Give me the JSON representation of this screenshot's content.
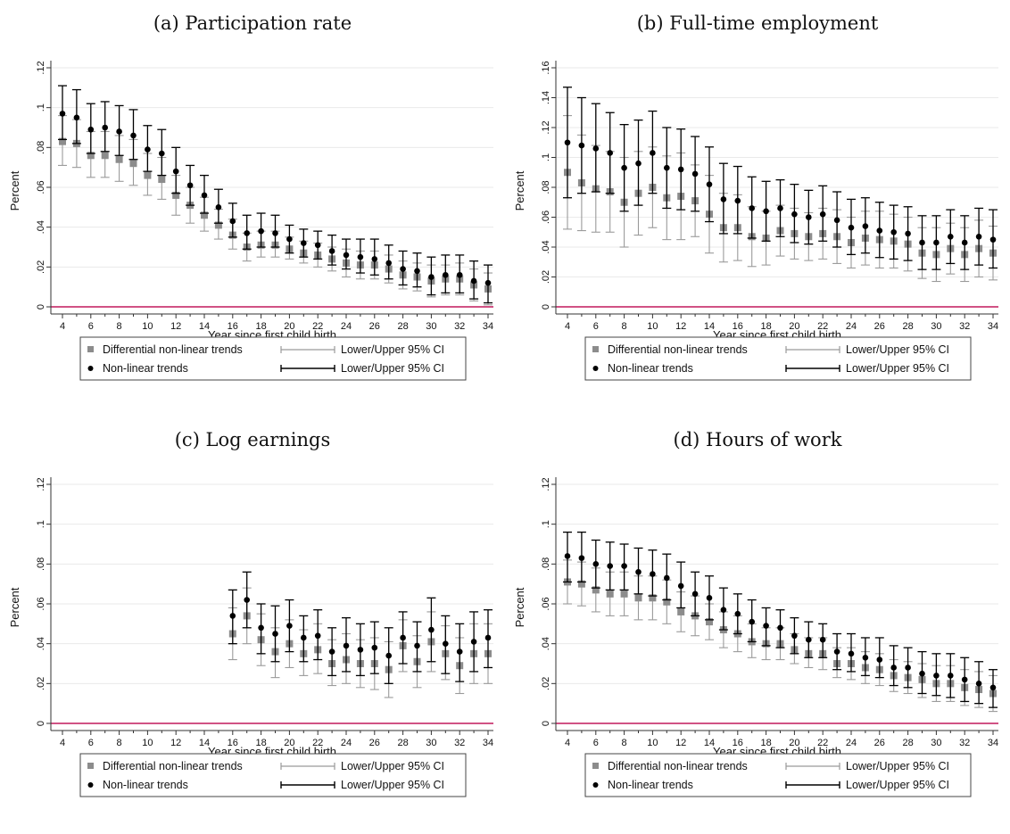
{
  "chart_data": [
    {
      "type": "scatter",
      "title": "(a) Participation rate",
      "xlabel": "Year since first child birth",
      "ylabel": "Percent",
      "xlim": [
        4,
        34
      ],
      "ylim": [
        0,
        0.12
      ],
      "xticks": [
        4,
        6,
        8,
        10,
        12,
        14,
        16,
        18,
        20,
        22,
        24,
        26,
        28,
        30,
        32,
        34
      ],
      "yticks": [
        0,
        0.02,
        0.04,
        0.06,
        0.08,
        0.1,
        0.12
      ],
      "ytick_labels": [
        "0",
        ".02",
        ".04",
        ".06",
        ".08",
        ".1",
        ".12"
      ],
      "grid": true,
      "legend_position": "bottom",
      "x": [
        4,
        5,
        6,
        7,
        8,
        9,
        10,
        11,
        12,
        13,
        14,
        15,
        16,
        17,
        18,
        19,
        20,
        21,
        22,
        23,
        24,
        25,
        26,
        27,
        28,
        29,
        30,
        31,
        32,
        33,
        34
      ],
      "series": [
        {
          "name": "Differential non-linear trends",
          "values": [
            0.083,
            0.082,
            0.076,
            0.076,
            0.074,
            0.072,
            0.066,
            0.064,
            0.056,
            0.051,
            0.046,
            0.041,
            0.036,
            0.03,
            0.031,
            0.031,
            0.029,
            0.027,
            0.026,
            0.024,
            0.022,
            0.021,
            0.021,
            0.019,
            0.016,
            0.015,
            0.013,
            0.014,
            0.014,
            0.011,
            0.009
          ],
          "lower": [
            0.071,
            0.07,
            0.065,
            0.065,
            0.063,
            0.061,
            0.056,
            0.054,
            0.046,
            0.042,
            0.038,
            0.034,
            0.029,
            0.023,
            0.025,
            0.025,
            0.024,
            0.022,
            0.02,
            0.018,
            0.015,
            0.014,
            0.014,
            0.012,
            0.009,
            0.008,
            0.005,
            0.006,
            0.006,
            0.003,
            0.001
          ],
          "upper": [
            0.096,
            0.094,
            0.088,
            0.088,
            0.086,
            0.084,
            0.077,
            0.075,
            0.066,
            0.06,
            0.055,
            0.049,
            0.044,
            0.037,
            0.038,
            0.038,
            0.035,
            0.033,
            0.032,
            0.03,
            0.029,
            0.028,
            0.028,
            0.026,
            0.023,
            0.022,
            0.021,
            0.021,
            0.022,
            0.019,
            0.017
          ]
        },
        {
          "name": "Non-linear trends",
          "values": [
            0.097,
            0.095,
            0.089,
            0.09,
            0.088,
            0.086,
            0.079,
            0.077,
            0.068,
            0.061,
            0.056,
            0.05,
            0.043,
            0.037,
            0.038,
            0.037,
            0.034,
            0.032,
            0.031,
            0.028,
            0.026,
            0.025,
            0.024,
            0.022,
            0.019,
            0.018,
            0.015,
            0.016,
            0.016,
            0.013,
            0.012
          ],
          "lower": [
            0.084,
            0.082,
            0.077,
            0.078,
            0.076,
            0.074,
            0.068,
            0.066,
            0.057,
            0.051,
            0.047,
            0.042,
            0.035,
            0.029,
            0.03,
            0.03,
            0.027,
            0.025,
            0.024,
            0.021,
            0.019,
            0.017,
            0.016,
            0.014,
            0.011,
            0.01,
            0.006,
            0.007,
            0.007,
            0.004,
            0.002
          ],
          "upper": [
            0.111,
            0.109,
            0.102,
            0.103,
            0.101,
            0.099,
            0.091,
            0.089,
            0.08,
            0.071,
            0.066,
            0.059,
            0.052,
            0.046,
            0.047,
            0.046,
            0.041,
            0.039,
            0.038,
            0.036,
            0.034,
            0.034,
            0.034,
            0.031,
            0.028,
            0.027,
            0.025,
            0.026,
            0.026,
            0.023,
            0.021
          ]
        }
      ]
    },
    {
      "type": "scatter",
      "title": "(b) Full-time employment",
      "xlabel": "Year since first child birth",
      "ylabel": "Percent",
      "xlim": [
        4,
        34
      ],
      "ylim": [
        0,
        0.16
      ],
      "xticks": [
        4,
        6,
        8,
        10,
        12,
        14,
        16,
        18,
        20,
        22,
        24,
        26,
        28,
        30,
        32,
        34
      ],
      "yticks": [
        0,
        0.02,
        0.04,
        0.06,
        0.08,
        0.1,
        0.12,
        0.14,
        0.16
      ],
      "ytick_labels": [
        "0",
        ".02",
        ".04",
        ".06",
        ".08",
        ".1",
        ".12",
        ".14",
        ".16"
      ],
      "grid": true,
      "legend_position": "bottom",
      "x": [
        4,
        5,
        6,
        7,
        8,
        9,
        10,
        11,
        12,
        13,
        14,
        15,
        16,
        17,
        18,
        19,
        20,
        21,
        22,
        23,
        24,
        25,
        26,
        27,
        28,
        29,
        30,
        31,
        32,
        33,
        34
      ],
      "series": [
        {
          "name": "Differential non-linear trends",
          "values": [
            0.09,
            0.083,
            0.079,
            0.077,
            0.07,
            0.076,
            0.08,
            0.073,
            0.074,
            0.071,
            0.062,
            0.053,
            0.053,
            0.047,
            0.046,
            0.051,
            0.049,
            0.047,
            0.049,
            0.047,
            0.043,
            0.046,
            0.045,
            0.044,
            0.042,
            0.036,
            0.035,
            0.039,
            0.035,
            0.039,
            0.036
          ],
          "lower": [
            0.052,
            0.051,
            0.05,
            0.05,
            0.04,
            0.048,
            0.053,
            0.045,
            0.045,
            0.047,
            0.036,
            0.03,
            0.031,
            0.027,
            0.028,
            0.034,
            0.032,
            0.031,
            0.032,
            0.029,
            0.026,
            0.028,
            0.026,
            0.026,
            0.024,
            0.019,
            0.017,
            0.022,
            0.017,
            0.02,
            0.018
          ],
          "upper": [
            0.128,
            0.115,
            0.108,
            0.104,
            0.1,
            0.104,
            0.107,
            0.101,
            0.103,
            0.095,
            0.088,
            0.076,
            0.075,
            0.067,
            0.064,
            0.068,
            0.066,
            0.063,
            0.066,
            0.065,
            0.06,
            0.064,
            0.064,
            0.062,
            0.06,
            0.053,
            0.053,
            0.056,
            0.053,
            0.058,
            0.054
          ]
        },
        {
          "name": "Non-linear trends",
          "values": [
            0.11,
            0.108,
            0.106,
            0.103,
            0.093,
            0.096,
            0.103,
            0.093,
            0.092,
            0.089,
            0.082,
            0.072,
            0.071,
            0.066,
            0.064,
            0.066,
            0.062,
            0.06,
            0.062,
            0.058,
            0.053,
            0.054,
            0.051,
            0.05,
            0.049,
            0.043,
            0.043,
            0.047,
            0.043,
            0.047,
            0.045
          ],
          "lower": [
            0.073,
            0.076,
            0.077,
            0.076,
            0.064,
            0.068,
            0.076,
            0.066,
            0.065,
            0.064,
            0.057,
            0.049,
            0.049,
            0.046,
            0.044,
            0.047,
            0.043,
            0.042,
            0.044,
            0.04,
            0.035,
            0.036,
            0.033,
            0.032,
            0.031,
            0.025,
            0.025,
            0.029,
            0.025,
            0.028,
            0.026
          ],
          "upper": [
            0.147,
            0.14,
            0.136,
            0.13,
            0.122,
            0.125,
            0.131,
            0.12,
            0.119,
            0.114,
            0.107,
            0.096,
            0.094,
            0.087,
            0.084,
            0.085,
            0.082,
            0.078,
            0.081,
            0.077,
            0.072,
            0.073,
            0.07,
            0.068,
            0.067,
            0.061,
            0.061,
            0.065,
            0.061,
            0.066,
            0.065
          ]
        }
      ]
    },
    {
      "type": "scatter",
      "title": "(c) Log earnings",
      "xlabel": "Year since first child birth",
      "ylabel": "Percent",
      "xlim": [
        4,
        34
      ],
      "ylim": [
        0,
        0.12
      ],
      "xticks": [
        4,
        6,
        8,
        10,
        12,
        14,
        16,
        18,
        20,
        22,
        24,
        26,
        28,
        30,
        32,
        34
      ],
      "yticks": [
        0,
        0.02,
        0.04,
        0.06,
        0.08,
        0.1,
        0.12
      ],
      "ytick_labels": [
        "0",
        ".02",
        ".04",
        ".06",
        ".08",
        ".1",
        ".12"
      ],
      "grid": true,
      "legend_position": "bottom",
      "x": [
        16,
        17,
        18,
        19,
        20,
        21,
        22,
        23,
        24,
        25,
        26,
        27,
        28,
        29,
        30,
        31,
        32,
        33,
        34
      ],
      "series": [
        {
          "name": "Differential non-linear trends",
          "values": [
            0.045,
            0.054,
            0.042,
            0.036,
            0.04,
            0.035,
            0.037,
            0.03,
            0.032,
            0.03,
            0.03,
            0.027,
            0.039,
            0.031,
            0.041,
            0.035,
            0.029,
            0.035,
            0.035
          ],
          "lower": [
            0.032,
            0.04,
            0.029,
            0.023,
            0.028,
            0.024,
            0.025,
            0.019,
            0.02,
            0.018,
            0.017,
            0.013,
            0.026,
            0.018,
            0.026,
            0.022,
            0.015,
            0.02,
            0.02
          ],
          "upper": [
            0.058,
            0.068,
            0.055,
            0.048,
            0.052,
            0.047,
            0.05,
            0.042,
            0.045,
            0.042,
            0.043,
            0.041,
            0.052,
            0.044,
            0.056,
            0.049,
            0.043,
            0.05,
            0.05
          ]
        },
        {
          "name": "Non-linear trends",
          "values": [
            0.054,
            0.062,
            0.048,
            0.045,
            0.049,
            0.043,
            0.044,
            0.036,
            0.039,
            0.037,
            0.038,
            0.034,
            0.043,
            0.039,
            0.047,
            0.04,
            0.036,
            0.041,
            0.043
          ],
          "lower": [
            0.04,
            0.048,
            0.035,
            0.031,
            0.036,
            0.031,
            0.032,
            0.024,
            0.026,
            0.024,
            0.025,
            0.02,
            0.03,
            0.026,
            0.031,
            0.025,
            0.021,
            0.026,
            0.028
          ],
          "upper": [
            0.067,
            0.076,
            0.06,
            0.059,
            0.062,
            0.054,
            0.057,
            0.048,
            0.053,
            0.05,
            0.051,
            0.048,
            0.056,
            0.051,
            0.063,
            0.054,
            0.05,
            0.056,
            0.057
          ]
        }
      ]
    },
    {
      "type": "scatter",
      "title": "(d) Hours of work",
      "xlabel": "Year since first child birth",
      "ylabel": "Percent",
      "xlim": [
        4,
        34
      ],
      "ylim": [
        0,
        0.12
      ],
      "xticks": [
        4,
        6,
        8,
        10,
        12,
        14,
        16,
        18,
        20,
        22,
        24,
        26,
        28,
        30,
        32,
        34
      ],
      "yticks": [
        0,
        0.02,
        0.04,
        0.06,
        0.08,
        0.1,
        0.12
      ],
      "ytick_labels": [
        "0",
        ".02",
        ".04",
        ".06",
        ".08",
        ".1",
        ".12"
      ],
      "grid": true,
      "legend_position": "bottom",
      "x": [
        4,
        5,
        6,
        7,
        8,
        9,
        10,
        11,
        12,
        13,
        14,
        15,
        16,
        17,
        18,
        19,
        20,
        21,
        22,
        23,
        24,
        25,
        26,
        27,
        28,
        29,
        30,
        31,
        32,
        33,
        34
      ],
      "series": [
        {
          "name": "Differential non-linear trends",
          "values": [
            0.071,
            0.07,
            0.067,
            0.065,
            0.065,
            0.063,
            0.063,
            0.061,
            0.056,
            0.054,
            0.051,
            0.047,
            0.045,
            0.041,
            0.04,
            0.04,
            0.037,
            0.035,
            0.035,
            0.03,
            0.03,
            0.028,
            0.027,
            0.024,
            0.023,
            0.022,
            0.02,
            0.02,
            0.018,
            0.017,
            0.015
          ],
          "lower": [
            0.06,
            0.059,
            0.056,
            0.054,
            0.054,
            0.052,
            0.052,
            0.05,
            0.046,
            0.044,
            0.042,
            0.038,
            0.036,
            0.033,
            0.032,
            0.032,
            0.03,
            0.028,
            0.027,
            0.023,
            0.022,
            0.02,
            0.019,
            0.016,
            0.015,
            0.013,
            0.011,
            0.011,
            0.009,
            0.008,
            0.006
          ],
          "upper": [
            0.082,
            0.081,
            0.078,
            0.076,
            0.076,
            0.074,
            0.074,
            0.072,
            0.066,
            0.064,
            0.06,
            0.056,
            0.054,
            0.05,
            0.048,
            0.048,
            0.045,
            0.043,
            0.043,
            0.038,
            0.038,
            0.036,
            0.035,
            0.032,
            0.031,
            0.03,
            0.029,
            0.029,
            0.027,
            0.026,
            0.024
          ]
        },
        {
          "name": "Non-linear trends",
          "values": [
            0.084,
            0.083,
            0.08,
            0.079,
            0.079,
            0.076,
            0.075,
            0.073,
            0.069,
            0.065,
            0.063,
            0.057,
            0.055,
            0.051,
            0.049,
            0.048,
            0.044,
            0.042,
            0.042,
            0.036,
            0.035,
            0.033,
            0.032,
            0.028,
            0.028,
            0.025,
            0.024,
            0.024,
            0.022,
            0.02,
            0.018
          ],
          "lower": [
            0.071,
            0.071,
            0.068,
            0.067,
            0.067,
            0.065,
            0.064,
            0.062,
            0.058,
            0.054,
            0.052,
            0.047,
            0.045,
            0.041,
            0.039,
            0.038,
            0.035,
            0.033,
            0.033,
            0.027,
            0.026,
            0.024,
            0.023,
            0.019,
            0.018,
            0.015,
            0.014,
            0.013,
            0.011,
            0.01,
            0.008
          ],
          "upper": [
            0.096,
            0.096,
            0.092,
            0.091,
            0.09,
            0.088,
            0.087,
            0.085,
            0.081,
            0.076,
            0.074,
            0.068,
            0.065,
            0.062,
            0.058,
            0.057,
            0.053,
            0.051,
            0.05,
            0.045,
            0.045,
            0.043,
            0.043,
            0.039,
            0.038,
            0.036,
            0.035,
            0.035,
            0.033,
            0.031,
            0.027
          ]
        }
      ]
    }
  ],
  "legend": {
    "entries": [
      "Differential non-linear trends",
      "Lower/Upper 95% CI",
      "Non-linear trends",
      "Lower/Upper 95% CI"
    ]
  },
  "colors": {
    "differential_marker": "#8c8c8c",
    "differential_ci": "#9a9a9a",
    "nonlinear_marker": "#000000",
    "nonlinear_ci": "#000000",
    "zero_line": "#c2185b",
    "grid": "#eaeaea",
    "axis": "#333333"
  }
}
